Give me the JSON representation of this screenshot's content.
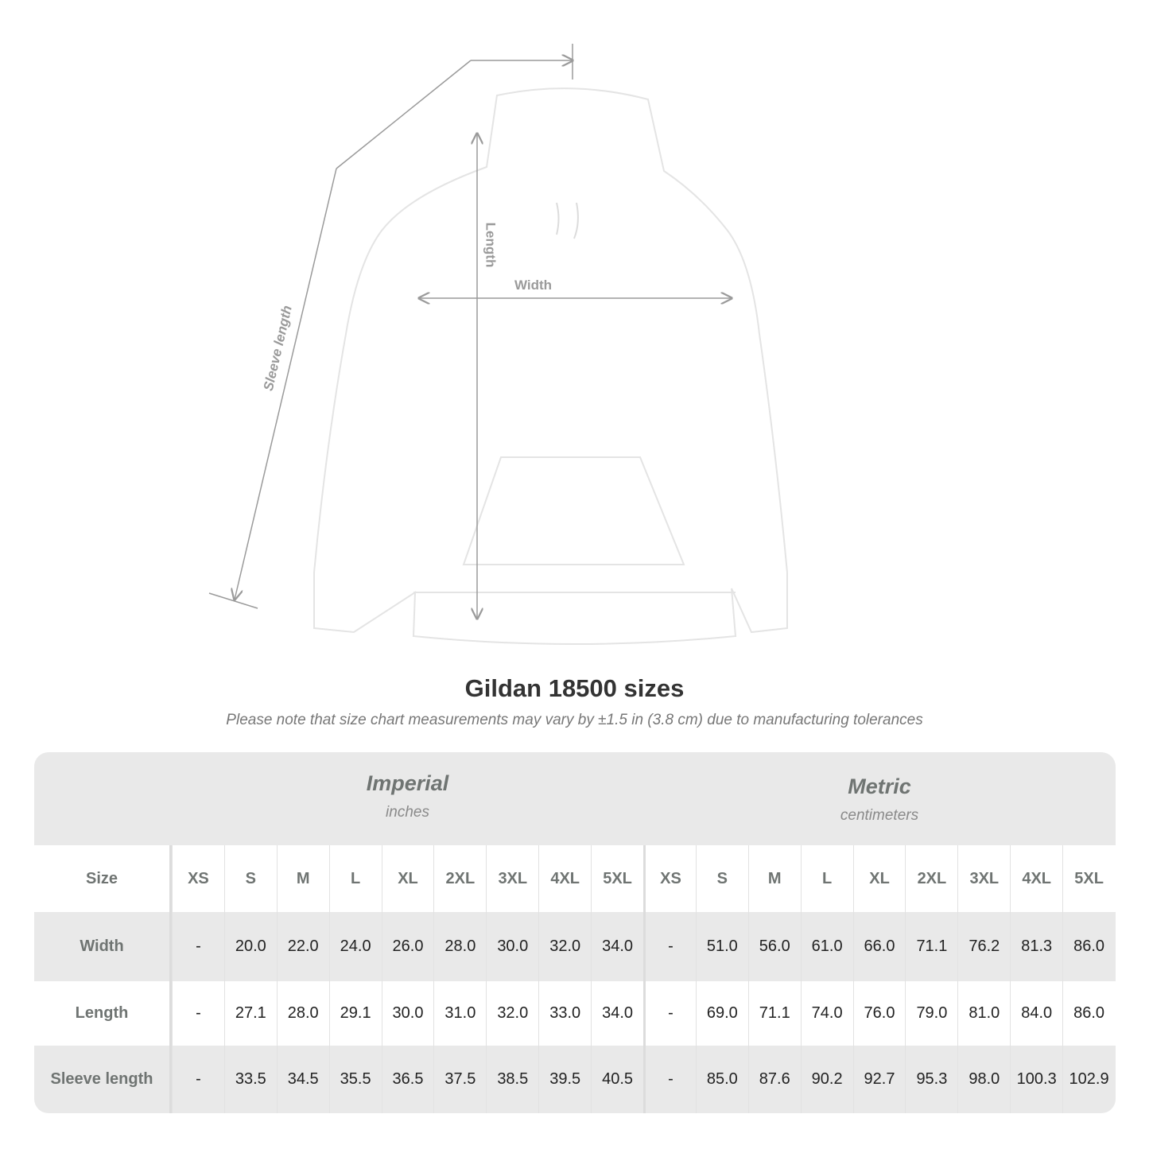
{
  "figure": {
    "labels": {
      "sleeve": "Sleeve length",
      "length": "Length",
      "width": "Width"
    },
    "garment_color": "#ffffff",
    "measure_line_color": "#9a9a9a"
  },
  "title": "Gildan 18500 sizes",
  "subtitle": "Please note that size chart measurements may vary by ±1.5 in (3.8 cm) due to manufacturing tolerances",
  "table": {
    "imperial": {
      "name": "Imperial",
      "unit": "inches"
    },
    "metric": {
      "name": "Metric",
      "unit": "centimeters"
    },
    "size_label": "Size",
    "sizes": [
      "XS",
      "S",
      "M",
      "L",
      "XL",
      "2XL",
      "3XL",
      "4XL",
      "5XL"
    ],
    "rows": [
      {
        "label": "Width",
        "imperial": [
          "-",
          "20.0",
          "22.0",
          "24.0",
          "26.0",
          "28.0",
          "30.0",
          "32.0",
          "34.0"
        ],
        "metric": [
          "-",
          "51.0",
          "56.0",
          "61.0",
          "66.0",
          "71.1",
          "76.2",
          "81.3",
          "86.0"
        ]
      },
      {
        "label": "Length",
        "imperial": [
          "-",
          "27.1",
          "28.0",
          "29.1",
          "30.0",
          "31.0",
          "32.0",
          "33.0",
          "34.0"
        ],
        "metric": [
          "-",
          "69.0",
          "71.1",
          "74.0",
          "76.0",
          "79.0",
          "81.0",
          "84.0",
          "86.0"
        ]
      },
      {
        "label": "Sleeve length",
        "imperial": [
          "-",
          "33.5",
          "34.5",
          "35.5",
          "36.5",
          "37.5",
          "38.5",
          "39.5",
          "40.5"
        ],
        "metric": [
          "-",
          "85.0",
          "87.6",
          "90.2",
          "92.7",
          "95.3",
          "98.0",
          "100.3",
          "102.9"
        ]
      }
    ],
    "header_bg": "#e9e9e9"
  }
}
